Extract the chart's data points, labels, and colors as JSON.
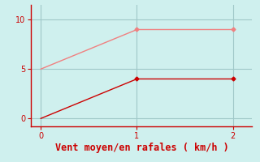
{
  "bg_color": "#cff0ee",
  "line1_x": [
    0,
    1,
    2
  ],
  "line1_y": [
    5,
    9,
    9
  ],
  "line1_color": "#f08080",
  "line1_marker": "D",
  "line1_markersize": 2.5,
  "line2_x": [
    0,
    1,
    2
  ],
  "line2_y": [
    0,
    4,
    4
  ],
  "line2_color": "#cc0000",
  "line2_marker": "D",
  "line2_markersize": 2.5,
  "xlabel": "Vent moyen/en rafales ( km/h )",
  "xlabel_color": "#cc0000",
  "xlabel_fontsize": 8.5,
  "xlim": [
    -0.1,
    2.2
  ],
  "ylim": [
    -0.8,
    11.5
  ],
  "xticks": [
    0,
    1,
    2
  ],
  "yticks": [
    0,
    5,
    10
  ],
  "tick_color": "#cc0000",
  "spine_color": "#cc0000",
  "grid_color": "#a0c8c8",
  "grid_linewidth": 0.8
}
